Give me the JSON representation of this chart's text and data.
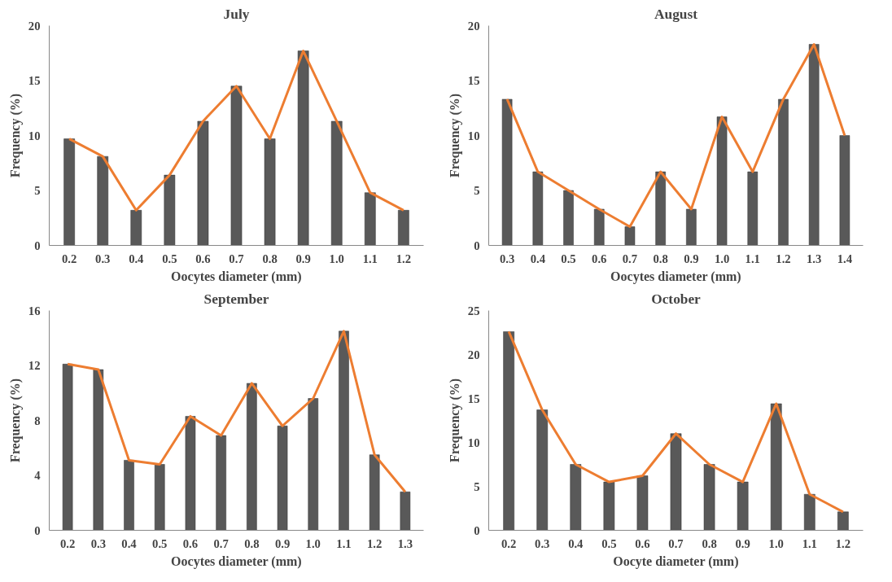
{
  "chart_data": [
    {
      "type": "bar",
      "title": "July",
      "xlabel": "Oocytes diameter (mm)",
      "ylabel": "Frequency (%)",
      "categories": [
        "0.2",
        "0.3",
        "0.4",
        "0.5",
        "0.6",
        "0.7",
        "0.8",
        "0.9",
        "1.0",
        "1.1",
        "1.2"
      ],
      "ylim": [
        0,
        20
      ],
      "yticks": [
        0,
        5,
        10,
        15,
        20
      ],
      "series": [
        {
          "color": "#595959",
          "values": [
            9.7,
            8.1,
            3.2,
            6.4,
            11.3,
            14.5,
            9.7,
            17.7,
            11.3,
            4.8,
            3.2
          ]
        },
        {
          "type": "line",
          "color": "#ed7d31",
          "values": [
            9.7,
            8.1,
            3.2,
            6.4,
            11.3,
            14.5,
            9.7,
            17.7,
            11.3,
            4.8,
            3.2
          ]
        }
      ]
    },
    {
      "type": "bar",
      "title": "August",
      "xlabel": "Oocytes diameter (mm)",
      "ylabel": "Frequency (%)",
      "categories": [
        "0.3",
        "0.4",
        "0.5",
        "0.6",
        "0.7",
        "0.8",
        "0.9",
        "1.0",
        "1.1",
        "1.2",
        "1.3",
        "1.4"
      ],
      "ylim": [
        0,
        20
      ],
      "yticks": [
        0,
        5,
        10,
        15,
        20
      ],
      "series": [
        {
          "color": "#595959",
          "values": [
            13.3,
            6.7,
            5.0,
            3.3,
            1.7,
            6.7,
            3.3,
            11.7,
            6.7,
            13.3,
            18.3,
            10.0
          ]
        },
        {
          "type": "line",
          "color": "#ed7d31",
          "values": [
            13.3,
            6.7,
            5.0,
            3.3,
            1.7,
            6.7,
            3.3,
            11.7,
            6.7,
            13.3,
            18.3,
            10.0
          ]
        }
      ]
    },
    {
      "type": "bar",
      "title": "September",
      "xlabel": "Oocytes diameter (mm)",
      "ylabel": "Frequency (%)",
      "categories": [
        "0.2",
        "0.3",
        "0.4",
        "0.5",
        "0.6",
        "0.7",
        "0.8",
        "0.9",
        "1.0",
        "1.1",
        "1.2",
        "1.3"
      ],
      "ylim": [
        0,
        16
      ],
      "yticks": [
        0,
        4,
        8,
        12,
        16
      ],
      "series": [
        {
          "color": "#595959",
          "values": [
            12.1,
            11.7,
            5.1,
            4.8,
            8.3,
            6.9,
            10.7,
            7.6,
            9.6,
            14.5,
            5.5,
            2.8
          ]
        },
        {
          "type": "line",
          "color": "#ed7d31",
          "values": [
            12.1,
            11.7,
            5.1,
            4.8,
            8.3,
            6.9,
            10.7,
            7.6,
            9.6,
            14.5,
            5.5,
            2.8
          ]
        }
      ]
    },
    {
      "type": "bar",
      "title": "October",
      "xlabel": "Oocyte diameter (mm)",
      "ylabel": "Frequency (%)",
      "categories": [
        "0.2",
        "0.3",
        "0.4",
        "0.5",
        "0.6",
        "0.7",
        "0.8",
        "0.9",
        "1.0",
        "1.1",
        "1.2"
      ],
      "ylim": [
        0,
        25
      ],
      "yticks": [
        0,
        5,
        10,
        15,
        20,
        25
      ],
      "series": [
        {
          "color": "#595959",
          "values": [
            22.6,
            13.7,
            7.5,
            5.5,
            6.2,
            11.0,
            7.5,
            5.5,
            14.4,
            4.1,
            2.1
          ]
        },
        {
          "type": "line",
          "color": "#ed7d31",
          "values": [
            22.6,
            13.7,
            7.5,
            5.5,
            6.2,
            11.0,
            7.5,
            5.5,
            14.4,
            4.1,
            2.1
          ]
        }
      ]
    }
  ]
}
